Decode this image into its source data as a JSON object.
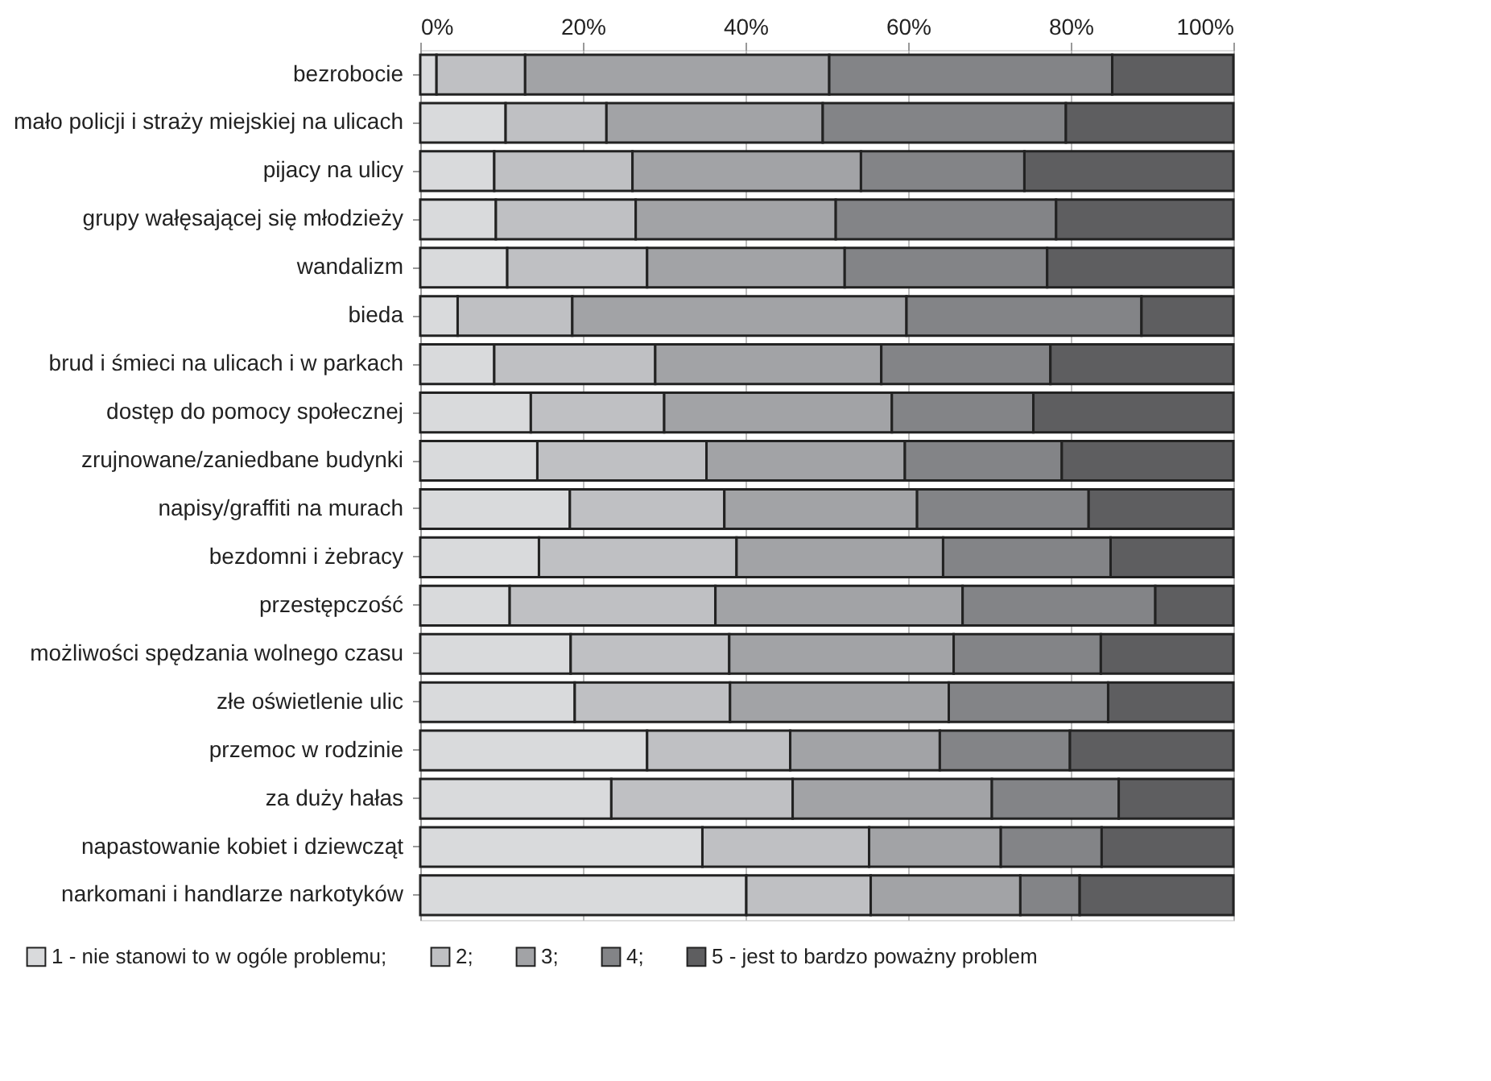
{
  "chart_data": {
    "type": "bar",
    "orientation": "horizontal",
    "stacked": true,
    "categories": [
      "bezrobocie",
      "mało policji i straży miejskiej na ulicach",
      "pijacy na ulicy",
      "grupy wałęsającej się młodzieży",
      "wandalizm",
      "bieda",
      "brud i śmieci na ulicach i w parkach",
      "dostęp do pomocy społecznej",
      "zrujnowane/zaniedbane budynki",
      "napisy/graffiti na murach",
      "bezdomni i żebracy",
      "przestępczość",
      "możliwości spędzania wolnego czasu",
      "złe oświetlenie ulic",
      "przemoc w rodzinie",
      "za duży hałas",
      "napastowanie kobiet i dziewcząt",
      "narkomani i handlarze narkotyków"
    ],
    "series": [
      {
        "name": "1 - nie stanowi to w ogóle problemu;",
        "color": "#d9dadc",
        "values": [
          2.0,
          10.5,
          9.1,
          9.3,
          10.7,
          4.6,
          9.1,
          13.6,
          14.4,
          18.4,
          14.6,
          11.0,
          18.5,
          19.0,
          27.9,
          23.5,
          34.7,
          40.1
        ]
      },
      {
        "name": "2;",
        "color": "#bfc0c3",
        "values": [
          10.9,
          12.4,
          17.0,
          17.2,
          17.2,
          14.1,
          19.8,
          16.4,
          20.8,
          19.0,
          24.3,
          25.3,
          19.5,
          19.1,
          17.6,
          22.3,
          20.5,
          15.3
        ]
      },
      {
        "name": "3;",
        "color": "#a2a3a6",
        "values": [
          37.4,
          26.6,
          28.1,
          24.6,
          24.3,
          41.1,
          27.8,
          28.0,
          24.4,
          23.7,
          25.4,
          30.4,
          27.6,
          26.9,
          18.4,
          24.5,
          16.2,
          18.4
        ]
      },
      {
        "name": "4;",
        "color": "#838487",
        "values": [
          34.8,
          29.9,
          20.1,
          27.1,
          24.9,
          28.9,
          20.8,
          17.4,
          19.3,
          21.1,
          20.6,
          23.7,
          18.1,
          19.6,
          16.0,
          15.6,
          12.4,
          7.3
        ]
      },
      {
        "name": "5 - jest to bardzo poważny problem",
        "color": "#5e5e60",
        "values": [
          14.9,
          20.6,
          25.7,
          21.8,
          22.9,
          11.3,
          22.5,
          24.6,
          21.1,
          17.8,
          15.1,
          9.6,
          16.3,
          15.4,
          20.1,
          14.1,
          16.2,
          18.9
        ]
      }
    ],
    "xlim": [
      0,
      100
    ],
    "xticks": [
      {
        "value": 0,
        "label": "0%"
      },
      {
        "value": 20,
        "label": "20%"
      },
      {
        "value": 40,
        "label": "40%"
      },
      {
        "value": 60,
        "label": "60%"
      },
      {
        "value": 80,
        "label": "80%"
      },
      {
        "value": 100,
        "label": "100%"
      }
    ],
    "grid": "x",
    "legend": "bottom"
  }
}
